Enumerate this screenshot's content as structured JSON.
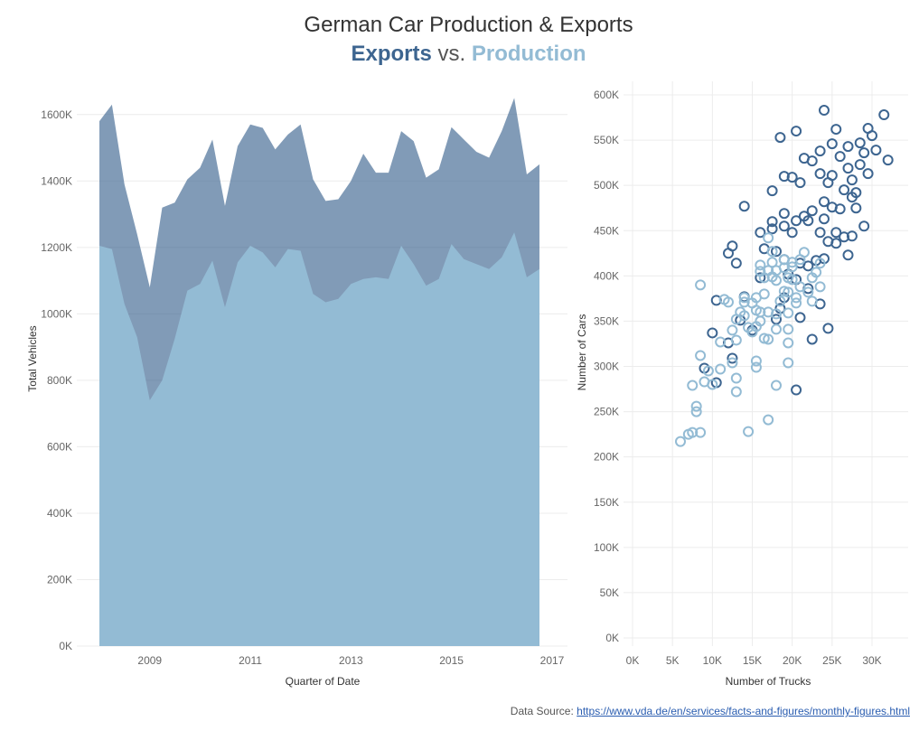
{
  "title": "German Car Production & Exports",
  "subtitle": {
    "exports": "Exports",
    "vs": "vs.",
    "production": "Production"
  },
  "colors": {
    "exports": "#3d6590",
    "production": "#93bbd4",
    "grid": "#ececec"
  },
  "source": {
    "label": "Data Source:",
    "link": "https://www.vda.de/en/services/facts-and-figures/monthly-figures.html"
  },
  "chart_data": [
    {
      "type": "area",
      "xlabel": "Quarter of Date",
      "ylabel": "Total Vehicles",
      "x_ticks": [
        "2009",
        "2011",
        "2013",
        "2015",
        "2017"
      ],
      "y_ticks": [
        "0K",
        "200K",
        "400K",
        "600K",
        "800K",
        "1000K",
        "1200K",
        "1400K",
        "1600K"
      ],
      "ylim": [
        0,
        1700000
      ],
      "grid": true,
      "x": [
        "2008-01-01",
        "2008-04-01",
        "2008-07-01",
        "2008-10-01",
        "2009-01-01",
        "2009-04-01",
        "2009-07-01",
        "2009-10-01",
        "2010-01-01",
        "2010-04-01",
        "2010-07-01",
        "2010-10-01",
        "2011-01-01",
        "2011-04-01",
        "2011-07-01",
        "2011-10-01",
        "2012-01-01",
        "2012-04-01",
        "2012-07-01",
        "2012-10-01",
        "2013-01-01",
        "2013-04-01",
        "2013-07-01",
        "2013-10-01",
        "2014-01-01",
        "2014-04-01",
        "2014-07-01",
        "2014-10-01",
        "2015-01-01",
        "2015-04-01",
        "2015-07-01",
        "2015-10-01",
        "2016-01-01",
        "2016-04-01",
        "2016-07-01",
        "2016-10-01"
      ],
      "series": [
        {
          "name": "Production",
          "role": "total",
          "values": [
            1580000,
            1630000,
            1390000,
            1240000,
            1080000,
            1320000,
            1335000,
            1405000,
            1440000,
            1525000,
            1325000,
            1505000,
            1570000,
            1560000,
            1495000,
            1540000,
            1570000,
            1405000,
            1340000,
            1345000,
            1400000,
            1482000,
            1425000,
            1425000,
            1550000,
            1520000,
            1410000,
            1435000,
            1562000,
            1525000,
            1488000,
            1470000,
            1550000,
            1650000,
            1420000,
            1450000
          ]
        },
        {
          "name": "Exports",
          "values": [
            1205000,
            1195000,
            1030000,
            930000,
            740000,
            800000,
            925000,
            1070000,
            1090000,
            1160000,
            1020000,
            1155000,
            1205000,
            1185000,
            1140000,
            1195000,
            1190000,
            1060000,
            1035000,
            1045000,
            1090000,
            1105000,
            1110000,
            1105000,
            1205000,
            1150000,
            1085000,
            1105000,
            1210000,
            1165000,
            1150000,
            1135000,
            1170000,
            1245000,
            1110000,
            1135000
          ]
        }
      ]
    },
    {
      "type": "scatter",
      "xlabel": "Number of Trucks",
      "ylabel": "Number of Cars",
      "x_ticks": [
        "0K",
        "5K",
        "10K",
        "15K",
        "20K",
        "25K",
        "30K"
      ],
      "y_ticks": [
        "0K",
        "50K",
        "100K",
        "150K",
        "200K",
        "250K",
        "300K",
        "350K",
        "400K",
        "450K",
        "500K",
        "550K",
        "600K"
      ],
      "xlim": [
        0,
        35000
      ],
      "ylim": [
        0,
        610000
      ],
      "grid": true,
      "series": [
        {
          "name": "Production",
          "points": [
            [
              31500,
              578000
            ],
            [
              24000,
              583000
            ],
            [
              25500,
              562000
            ],
            [
              29500,
              563000
            ],
            [
              20500,
              560000
            ],
            [
              30000,
              555000
            ],
            [
              23500,
              538000
            ],
            [
              25000,
              546000
            ],
            [
              28500,
              547000
            ],
            [
              27000,
              543000
            ],
            [
              18500,
              553000
            ],
            [
              26000,
              532000
            ],
            [
              21500,
              530000
            ],
            [
              29000,
              536000
            ],
            [
              30500,
              539000
            ],
            [
              32000,
              528000
            ],
            [
              28500,
              523000
            ],
            [
              22500,
              527000
            ],
            [
              27000,
              519000
            ],
            [
              23500,
              513000
            ],
            [
              25000,
              511000
            ],
            [
              24500,
              503000
            ],
            [
              20000,
              509000
            ],
            [
              21000,
              503000
            ],
            [
              19000,
              510000
            ],
            [
              27500,
              506000
            ],
            [
              29500,
              513000
            ],
            [
              26500,
              495000
            ],
            [
              27500,
              487000
            ],
            [
              28000,
              492000
            ],
            [
              17500,
              494000
            ],
            [
              24000,
              482000
            ],
            [
              26000,
              474000
            ],
            [
              28000,
              475000
            ],
            [
              25000,
              476000
            ],
            [
              14000,
              477000
            ],
            [
              22500,
              472000
            ],
            [
              19000,
              469000
            ],
            [
              21500,
              466000
            ],
            [
              24000,
              463000
            ],
            [
              20500,
              461000
            ],
            [
              22000,
              461000
            ],
            [
              19000,
              455000
            ],
            [
              23500,
              448000
            ],
            [
              26500,
              443000
            ],
            [
              27500,
              444000
            ],
            [
              24500,
              438000
            ],
            [
              25500,
              436000
            ],
            [
              29000,
              455000
            ],
            [
              20000,
              448000
            ],
            [
              17500,
              452000
            ],
            [
              16000,
              448000
            ],
            [
              16500,
              430000
            ],
            [
              18000,
              427000
            ],
            [
              19000,
              418000
            ],
            [
              21000,
              414000
            ],
            [
              12500,
              433000
            ],
            [
              12000,
              425000
            ],
            [
              22000,
              411000
            ],
            [
              13000,
              414000
            ],
            [
              19500,
              402000
            ],
            [
              27000,
              423000
            ],
            [
              23000,
              417000
            ],
            [
              24000,
              419000
            ],
            [
              16000,
              398000
            ],
            [
              20500,
              396000
            ],
            [
              10500,
              373000
            ],
            [
              14000,
              377000
            ],
            [
              22000,
              386000
            ],
            [
              23500,
              369000
            ],
            [
              19000,
              376000
            ],
            [
              18500,
              364000
            ],
            [
              21000,
              354000
            ],
            [
              13500,
              351000
            ],
            [
              18000,
              352000
            ],
            [
              15000,
              340000
            ],
            [
              24500,
              342000
            ],
            [
              10000,
              337000
            ],
            [
              12000,
              326000
            ],
            [
              22500,
              330000
            ],
            [
              12500,
              309000
            ],
            [
              9000,
              298000
            ],
            [
              10500,
              282000
            ],
            [
              20500,
              274000
            ],
            [
              17500,
              460000
            ],
            [
              25500,
              448000
            ]
          ]
        },
        {
          "name": "Exports",
          "points": [
            [
              6000,
              217000
            ],
            [
              7000,
              225000
            ],
            [
              7500,
              227000
            ],
            [
              8000,
              256000
            ],
            [
              8000,
              250000
            ],
            [
              7500,
              279000
            ],
            [
              8500,
              312000
            ],
            [
              8500,
              227000
            ],
            [
              9000,
              283000
            ],
            [
              9500,
              295000
            ],
            [
              10000,
              280000
            ],
            [
              11000,
              297000
            ],
            [
              11000,
              327000
            ],
            [
              11500,
              374000
            ],
            [
              12000,
              371000
            ],
            [
              12500,
              304000
            ],
            [
              12500,
              340000
            ],
            [
              13000,
              329000
            ],
            [
              13000,
              352000
            ],
            [
              13000,
              287000
            ],
            [
              13000,
              272000
            ],
            [
              13500,
              360000
            ],
            [
              14000,
              356000
            ],
            [
              14000,
              371000
            ],
            [
              14000,
              376000
            ],
            [
              14500,
              343000
            ],
            [
              15000,
              338000
            ],
            [
              15000,
              370000
            ],
            [
              15500,
              376000
            ],
            [
              15500,
              362000
            ],
            [
              15500,
              344000
            ],
            [
              15500,
              306000
            ],
            [
              15500,
              299000
            ],
            [
              16000,
              360000
            ],
            [
              16000,
              350000
            ],
            [
              16000,
              405000
            ],
            [
              16000,
              412000
            ],
            [
              16500,
              398000
            ],
            [
              16500,
              380000
            ],
            [
              16500,
              331000
            ],
            [
              17000,
              330000
            ],
            [
              17000,
              360000
            ],
            [
              17000,
              406000
            ],
            [
              17000,
              442000
            ],
            [
              17000,
              241000
            ],
            [
              17500,
              399000
            ],
            [
              17500,
              415000
            ],
            [
              17500,
              427000
            ],
            [
              18000,
              406000
            ],
            [
              18000,
              395000
            ],
            [
              18000,
              358000
            ],
            [
              18000,
              341000
            ],
            [
              18000,
              279000
            ],
            [
              18500,
              372000
            ],
            [
              19000,
              409000
            ],
            [
              19000,
              418000
            ],
            [
              19000,
              383000
            ],
            [
              19500,
              398000
            ],
            [
              19500,
              382000
            ],
            [
              19500,
              359000
            ],
            [
              19500,
              341000
            ],
            [
              19500,
              326000
            ],
            [
              19500,
              304000
            ],
            [
              20000,
              396000
            ],
            [
              20000,
              410000
            ],
            [
              20000,
              415000
            ],
            [
              20500,
              376000
            ],
            [
              20500,
              370000
            ],
            [
              21000,
              388000
            ],
            [
              21000,
              418000
            ],
            [
              21500,
              426000
            ],
            [
              22000,
              382000
            ],
            [
              22500,
              398000
            ],
            [
              22500,
              372000
            ],
            [
              23000,
              404000
            ],
            [
              23500,
              388000
            ],
            [
              23500,
              414000
            ],
            [
              14500,
              228000
            ],
            [
              8500,
              390000
            ]
          ]
        }
      ]
    }
  ]
}
